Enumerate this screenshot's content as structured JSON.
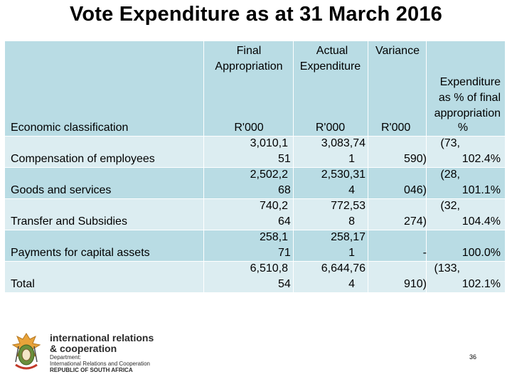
{
  "slide": {
    "title": "Vote Expenditure as at 31 March 2016",
    "page_number": "36"
  },
  "table": {
    "header": {
      "col1": "Economic classification",
      "col2_line1": "Final",
      "col2_line2": "Appropriation",
      "col2_unit": "R'000",
      "col3_line1": "Actual",
      "col3_line2": "Expenditure",
      "col3_unit": "R'000",
      "col4_line1": "Variance",
      "col4_unit": "R'000",
      "col5_lines": [
        "Expenditure",
        "as % of final",
        "appropriation",
        "%"
      ]
    },
    "rows": [
      {
        "classification": "Compensation of employees",
        "final_top": "3,010,1",
        "final_bottom": "51",
        "actual_top": "3,083,74",
        "actual_bottom": "1",
        "variance_top": "(73,",
        "variance_bottom": "590)",
        "pct": "102.4%"
      },
      {
        "classification": "Goods and services",
        "final_top": "2,502,2",
        "final_bottom": "68",
        "actual_top": "2,530,31",
        "actual_bottom": "4",
        "variance_top": "(28,",
        "variance_bottom": "046)",
        "pct": "101.1%"
      },
      {
        "classification": "Transfer and Subsidies",
        "final_top": "740,2",
        "final_bottom": "64",
        "actual_top": "772,53",
        "actual_bottom": "8",
        "variance_top": "(32,",
        "variance_bottom": "274)",
        "pct": "104.4%"
      },
      {
        "classification": "Payments for capital assets",
        "final_top": "258,1",
        "final_bottom": "71",
        "actual_top": "258,17",
        "actual_bottom": "1",
        "variance_top": "",
        "variance_bottom": "-",
        "pct": "100.0%"
      },
      {
        "classification": "Total",
        "final_top": "6,510,8",
        "final_bottom": "54",
        "actual_top": "6,644,76",
        "actual_bottom": "4",
        "variance_top": "(133,",
        "variance_bottom": "910)",
        "pct": "102.1%"
      }
    ]
  },
  "footer": {
    "brand_line1": "international relations",
    "brand_line2": "& cooperation",
    "brand_line3": "Department:",
    "brand_line4": "International Relations and Cooperation",
    "brand_line5": "REPUBLIC OF SOUTH AFRICA",
    "coat_of_arms": "coat-of-arms"
  },
  "colors": {
    "header_fill": "#b9dce4",
    "row_fill": "#dcedf1",
    "grid_line": "#ffffff"
  }
}
